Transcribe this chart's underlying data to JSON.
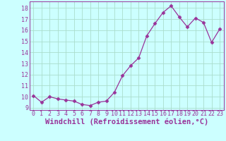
{
  "x": [
    0,
    1,
    2,
    3,
    4,
    5,
    6,
    7,
    8,
    9,
    10,
    11,
    12,
    13,
    14,
    15,
    16,
    17,
    18,
    19,
    20,
    21,
    22,
    23
  ],
  "y": [
    10.1,
    9.5,
    10.0,
    9.8,
    9.7,
    9.6,
    9.3,
    9.2,
    9.5,
    9.6,
    10.4,
    11.9,
    12.8,
    13.5,
    15.5,
    16.6,
    17.6,
    18.2,
    17.2,
    16.3,
    17.1,
    16.7,
    14.9,
    16.1
  ],
  "line_color": "#993399",
  "marker": "D",
  "marker_size": 2.5,
  "bg_color": "#ccffff",
  "grid_color": "#aaddcc",
  "xlabel": "Windchill (Refroidissement éolien,°C)",
  "ylim": [
    8.8,
    18.6
  ],
  "xlim": [
    -0.5,
    23.5
  ],
  "yticks": [
    9,
    10,
    11,
    12,
    13,
    14,
    15,
    16,
    17,
    18
  ],
  "xticks": [
    0,
    1,
    2,
    3,
    4,
    5,
    6,
    7,
    8,
    9,
    10,
    11,
    12,
    13,
    14,
    15,
    16,
    17,
    18,
    19,
    20,
    21,
    22,
    23
  ],
  "tick_fontsize": 6,
  "xlabel_fontsize": 7.5
}
